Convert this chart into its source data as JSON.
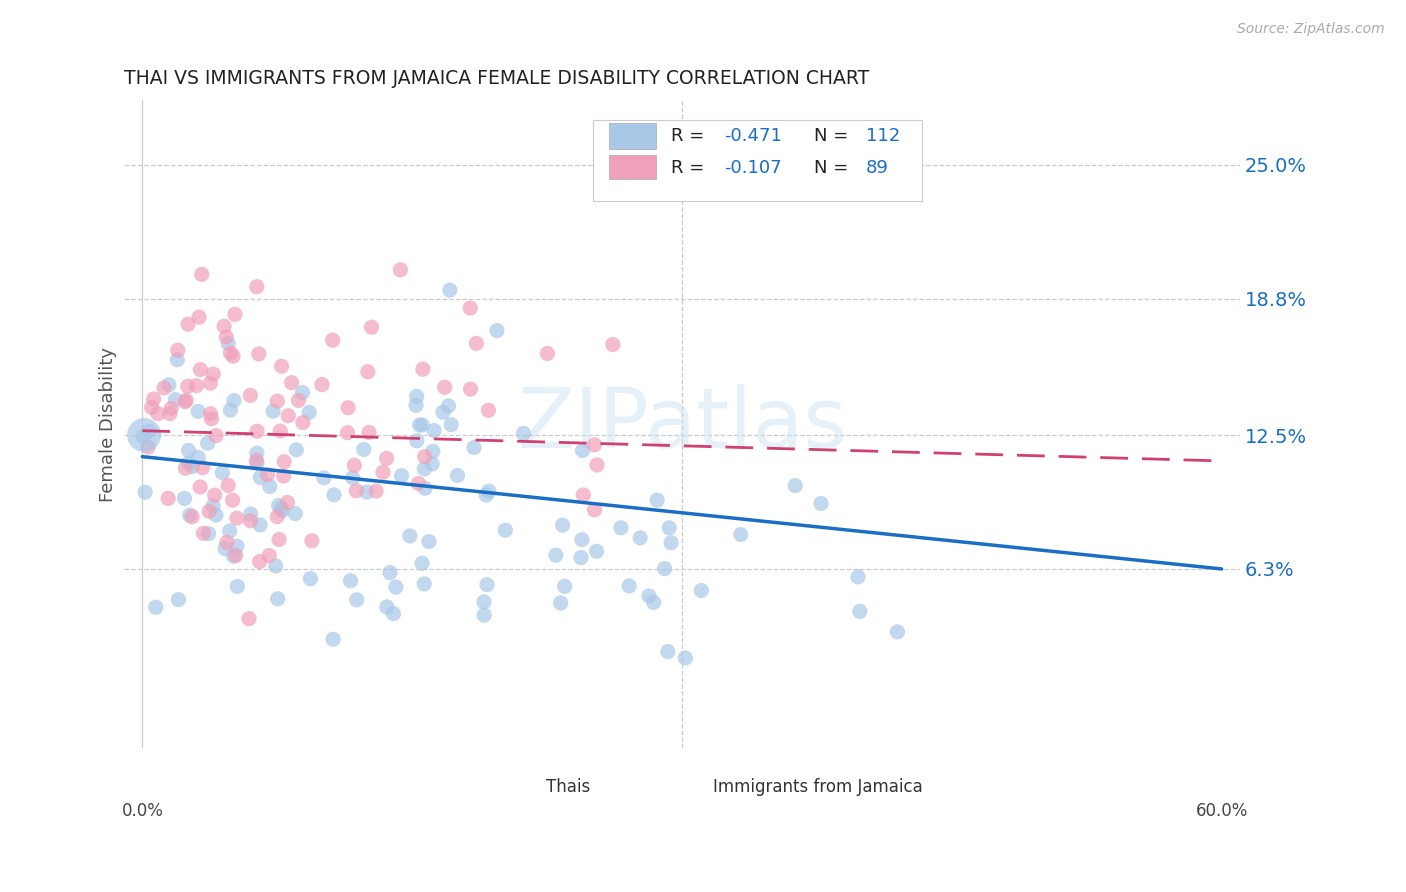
{
  "title": "THAI VS IMMIGRANTS FROM JAMAICA FEMALE DISABILITY CORRELATION CHART",
  "source": "Source: ZipAtlas.com",
  "ylabel": "Female Disability",
  "watermark": "ZIPatlas",
  "color_thai": "#a8c8e8",
  "color_jamaica": "#f0a0b8",
  "color_line_thai": "#1a6fc4",
  "color_line_jamaica": "#d04070",
  "color_text_blue": "#1a6fc4",
  "color_title": "#222222",
  "color_source": "#888888",
  "xmin": 0.0,
  "xmax": 0.6,
  "ymin": -0.02,
  "ymax": 0.28,
  "yticks": [
    0.063,
    0.125,
    0.188,
    0.25
  ],
  "ytick_labels": [
    "6.3%",
    "12.5%",
    "18.8%",
    "25.0%"
  ],
  "xticks": [
    0.0,
    0.1,
    0.2,
    0.3,
    0.4,
    0.5,
    0.6
  ],
  "n_thai": 112,
  "n_jamaica": 89,
  "thai_line_x0": 0.0,
  "thai_line_y0": 0.115,
  "thai_line_x1": 0.6,
  "thai_line_y1": 0.063,
  "jam_line_x0": 0.0,
  "jam_line_y0": 0.127,
  "jam_line_x1": 0.6,
  "jam_line_y1": 0.113,
  "legend_r1": "-0.471",
  "legend_n1": "112",
  "legend_r2": "-0.107",
  "legend_n2": "89"
}
